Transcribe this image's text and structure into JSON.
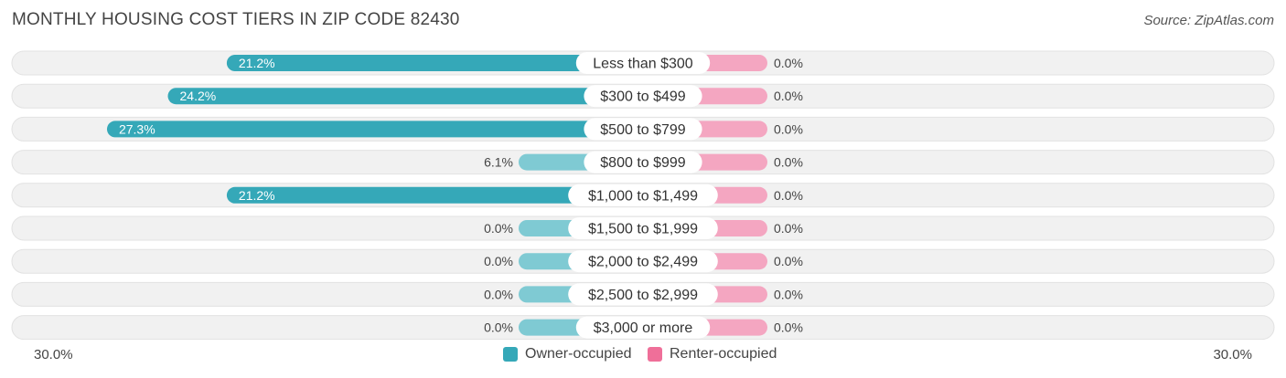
{
  "header": {
    "title": "MONTHLY HOUSING COST TIERS IN ZIP CODE 82430",
    "source": "Source: ZipAtlas.com"
  },
  "colors": {
    "owner_strong": "#35a8b8",
    "owner_light": "#7fcad3",
    "renter": "#f4a6c1",
    "renter_legend": "#ef6f99",
    "track": "#f1f1f1"
  },
  "chart_data": {
    "type": "bar",
    "orientation": "horizontal-diverging",
    "categories": [
      "Less than $300",
      "$300 to $499",
      "$500 to $799",
      "$800 to $999",
      "$1,000 to $1,499",
      "$1,500 to $1,999",
      "$2,000 to $2,499",
      "$2,500 to $2,999",
      "$3,000 or more"
    ],
    "series": [
      {
        "name": "Owner-occupied",
        "values": [
          21.2,
          24.2,
          27.3,
          6.1,
          21.2,
          0.0,
          0.0,
          0.0,
          0.0
        ]
      },
      {
        "name": "Renter-occupied",
        "values": [
          0.0,
          0.0,
          0.0,
          0.0,
          0.0,
          0.0,
          0.0,
          0.0,
          0.0
        ]
      }
    ],
    "value_labels": {
      "owner": [
        "21.2%",
        "24.2%",
        "27.3%",
        "6.1%",
        "21.2%",
        "0.0%",
        "0.0%",
        "0.0%",
        "0.0%"
      ],
      "renter": [
        "0.0%",
        "0.0%",
        "0.0%",
        "0.0%",
        "0.0%",
        "0.0%",
        "0.0%",
        "0.0%",
        "0.0%"
      ]
    },
    "xlim": [
      -30,
      30
    ],
    "axis_left_label": "30.0%",
    "axis_right_label": "30.0%",
    "legend_position": "bottom-center"
  }
}
